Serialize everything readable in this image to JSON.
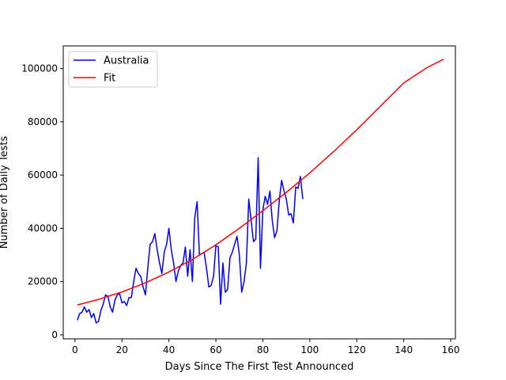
{
  "chart_data": {
    "type": "line",
    "xlabel": "Days Since The First Test Announced",
    "ylabel": "Number of Daily Tests",
    "xlim": [
      -5,
      162
    ],
    "ylim": [
      -1500,
      108500
    ],
    "xticks": [
      0,
      20,
      40,
      60,
      80,
      100,
      120,
      140,
      160
    ],
    "yticks": [
      0,
      20000,
      40000,
      60000,
      80000,
      100000
    ],
    "grid": false,
    "legend_position": "top-left",
    "series": [
      {
        "name": "Australia",
        "color": "#0000ff",
        "x": [
          1,
          2,
          3,
          4,
          5,
          6,
          7,
          8,
          9,
          10,
          11,
          12,
          13,
          14,
          15,
          16,
          17,
          18,
          19,
          20,
          21,
          22,
          23,
          24,
          25,
          26,
          27,
          28,
          29,
          30,
          31,
          32,
          33,
          34,
          35,
          36,
          37,
          38,
          39,
          40,
          41,
          42,
          43,
          44,
          45,
          46,
          47,
          48,
          49,
          50,
          51,
          52,
          53,
          54,
          55,
          56,
          57,
          58,
          59,
          60,
          61,
          62,
          63,
          64,
          65,
          66,
          67,
          68,
          69,
          70,
          71,
          72,
          73,
          74,
          75,
          76,
          77,
          78,
          79,
          80,
          81,
          82,
          83,
          84,
          85,
          86,
          87,
          88,
          89,
          90,
          91,
          92,
          93,
          94,
          95,
          96,
          97
        ],
        "y": [
          5500,
          8000,
          8500,
          10500,
          8500,
          9500,
          6500,
          8000,
          4500,
          5000,
          9000,
          11500,
          15000,
          14500,
          10500,
          8500,
          13000,
          15000,
          15500,
          12000,
          12500,
          11000,
          14000,
          14000,
          20000,
          25000,
          23000,
          22000,
          18000,
          15000,
          25000,
          34000,
          35000,
          38000,
          32000,
          27000,
          23000,
          31000,
          34000,
          40000,
          32000,
          27000,
          20000,
          24000,
          26000,
          27000,
          33000,
          22000,
          32000,
          20000,
          44000,
          50000,
          30000,
          30500,
          31000,
          25000,
          18000,
          18500,
          22000,
          33500,
          33000,
          11500,
          27000,
          16000,
          17000,
          29000,
          31000,
          34000,
          37000,
          30000,
          16000,
          20000,
          27000,
          51000,
          43000,
          35000,
          36000,
          66500,
          25000,
          47000,
          52000,
          49000,
          54000,
          43000,
          36500,
          39000,
          50500,
          58000,
          54000,
          51000,
          45000,
          45500,
          42000,
          55500,
          55000,
          59500,
          51000
        ]
      },
      {
        "name": "Fit",
        "color": "#ff0000",
        "x": [
          1,
          10,
          20,
          30,
          40,
          50,
          60,
          70,
          80,
          90,
          100,
          110,
          120,
          130,
          140,
          150,
          157
        ],
        "y": [
          11200,
          13300,
          16100,
          19500,
          23600,
          28300,
          33800,
          40000,
          46600,
          53500,
          60800,
          68700,
          77000,
          85800,
          94600,
          100400,
          103500
        ]
      }
    ]
  }
}
